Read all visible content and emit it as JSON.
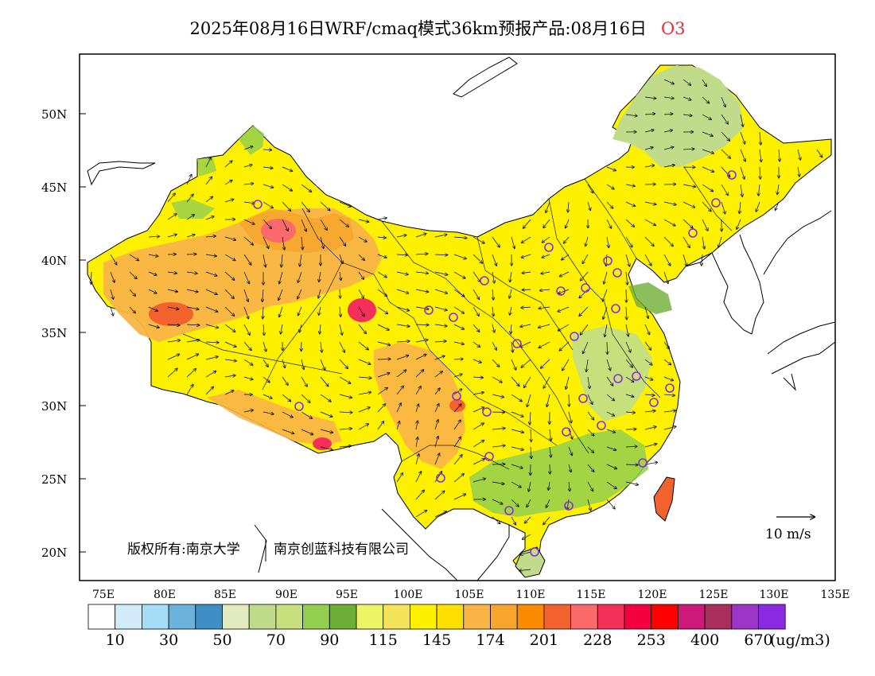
{
  "title": {
    "main": "2025年08月16日WRF/cmaq模式36km预报产品:08月16日",
    "species": "O3"
  },
  "axes": {
    "lat_labels": [
      "50N",
      "45N",
      "40N",
      "35N",
      "30N",
      "25N",
      "20N"
    ],
    "lon_labels": [
      "75E",
      "80E",
      "85E",
      "90E",
      "95E",
      "100E",
      "105E",
      "110E",
      "115E",
      "120E",
      "125E",
      "130E",
      "135E"
    ]
  },
  "copyright": {
    "left": "版权所有:南京大学",
    "right": "南京创蓝科技有限公司"
  },
  "wind_reference": "10 m/s",
  "colorbar": {
    "unit": "(ug/m3)",
    "tick_labels": [
      "10",
      "30",
      "50",
      "70",
      "90",
      "115",
      "145",
      "174",
      "201",
      "228",
      "253",
      "400",
      "670"
    ],
    "colors": [
      "#ffffff",
      "#d2ecfa",
      "#a6dcf5",
      "#6bb2dd",
      "#3f8fc4",
      "#e1eac0",
      "#c0dc8a",
      "#c6e07e",
      "#92cf50",
      "#6fae36",
      "#eef565",
      "#f3e45a",
      "#fdf100",
      "#fde000",
      "#f9b448",
      "#f7a52e",
      "#fb8b00",
      "#f2622c",
      "#fb6a6a",
      "#f3305a",
      "#f5003f",
      "#ff0000",
      "#cc1a78",
      "#a82f5c",
      "#9b36c8",
      "#8a2be2"
    ]
  },
  "stations_icon": "circle-marker-icon",
  "colors": {
    "station_marker": "#8a2be2",
    "title_species": "#e03030"
  }
}
